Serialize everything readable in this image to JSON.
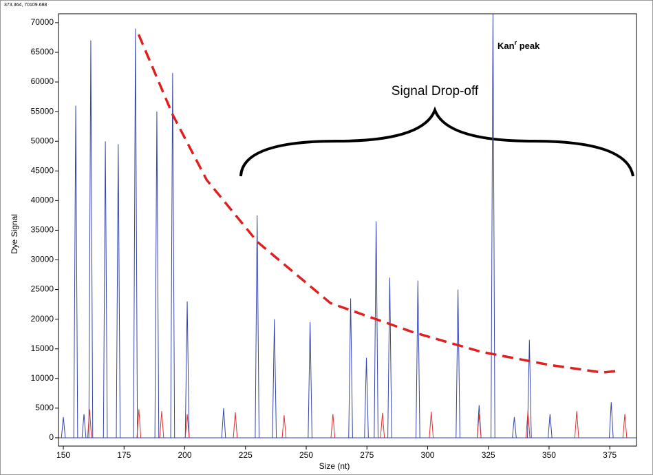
{
  "chart_data": {
    "type": "electropherogram",
    "readout": "373.364, 70109.688",
    "xlabel": "Size (nt)",
    "ylabel": "Dye Signal",
    "xlim": [
      148,
      386
    ],
    "ylim": [
      -1400,
      71500
    ],
    "xticks": [
      150,
      175,
      200,
      225,
      250,
      275,
      300,
      325,
      350,
      375
    ],
    "yticks": [
      0,
      5000,
      10000,
      15000,
      20000,
      25000,
      30000,
      35000,
      40000,
      45000,
      50000,
      55000,
      60000,
      65000,
      70000
    ],
    "series": [
      {
        "color": "#3344aa",
        "x": [
          150,
          155.1,
          158.5,
          161.3,
          167.3,
          172.6,
          179.7,
          188.5,
          195,
          201,
          216,
          229.8,
          236.9,
          251.6,
          268.3,
          274.8,
          278.8,
          284.4,
          296,
          312.5,
          321.2,
          326.9,
          335.7,
          341.9,
          350.4,
          375.6
        ],
        "values": [
          3500,
          56000,
          4000,
          67000,
          50000,
          49500,
          69000,
          55000,
          61500,
          23000,
          5000,
          37500,
          20000,
          19500,
          23500,
          13500,
          36500,
          27000,
          26500,
          25000,
          5500,
          71500,
          3500,
          16500,
          4000,
          6000
        ]
      },
      {
        "color": "#e03030",
        "x": [
          160.8,
          181.1,
          190.5,
          201,
          220.8,
          240.9,
          261,
          281.4,
          301.5,
          321.2,
          341.3,
          361.4,
          381.2
        ],
        "values": [
          4800,
          4800,
          4500,
          4000,
          4300,
          3800,
          4000,
          4200,
          4400,
          4000,
          4500,
          4500,
          4000
        ]
      }
    ],
    "trend": {
      "color": "#e02020",
      "x": [
        181,
        195,
        209,
        230,
        260,
        294,
        322,
        350,
        372,
        379
      ],
      "values": [
        68000,
        54500,
        43500,
        33000,
        22700,
        17800,
        14500,
        12300,
        11000,
        11300
      ]
    },
    "annotations": {
      "drop": "Signal Drop-off",
      "kan": "Kan",
      "kan_sup": "r",
      "kan_rest": " peak"
    }
  }
}
